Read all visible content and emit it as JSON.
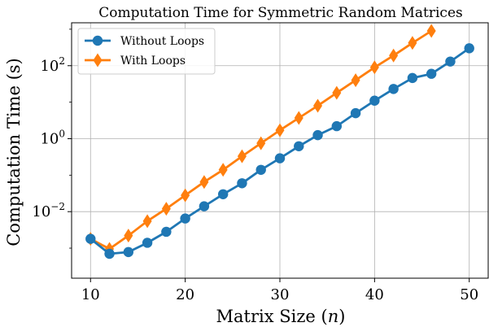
{
  "chart_data": {
    "type": "line",
    "title": "Computation Time for Symmetric Random Matrices",
    "xlabel": "Matrix Size (n)",
    "ylabel": "Computation Time (s)",
    "x_ticks": [
      "10",
      "20",
      "30",
      "40",
      "50"
    ],
    "x_tick_values": [
      10,
      20,
      30,
      40,
      50
    ],
    "y_scale": "log",
    "y_tick_exponents": [
      -2,
      0,
      2
    ],
    "xlim": [
      8,
      52
    ],
    "ylim": [
      0.00015,
      1500
    ],
    "grid": true,
    "legend_position": "top-left",
    "series": [
      {
        "name": "Without Loops",
        "color": "#1f77b4",
        "marker": "circle",
        "x": [
          10,
          12,
          14,
          16,
          18,
          20,
          22,
          24,
          26,
          28,
          30,
          32,
          34,
          36,
          38,
          40,
          42,
          44,
          46,
          48,
          50
        ],
        "y": [
          0.0018,
          0.0007,
          0.00078,
          0.0014,
          0.0028,
          0.0065,
          0.014,
          0.03,
          0.06,
          0.14,
          0.29,
          0.62,
          1.25,
          2.2,
          5,
          11,
          23,
          46,
          60,
          130,
          300
        ]
      },
      {
        "name": "With Loops",
        "color": "#ff7f0e",
        "marker": "diamond",
        "x": [
          10,
          12,
          14,
          16,
          18,
          20,
          22,
          24,
          26,
          28,
          30,
          32,
          34,
          36,
          38,
          40,
          42,
          44,
          46
        ],
        "y": [
          0.0018,
          0.00095,
          0.0022,
          0.0055,
          0.012,
          0.028,
          0.065,
          0.14,
          0.33,
          0.75,
          1.7,
          3.7,
          8,
          18,
          40,
          90,
          190,
          420,
          900
        ]
      }
    ]
  }
}
